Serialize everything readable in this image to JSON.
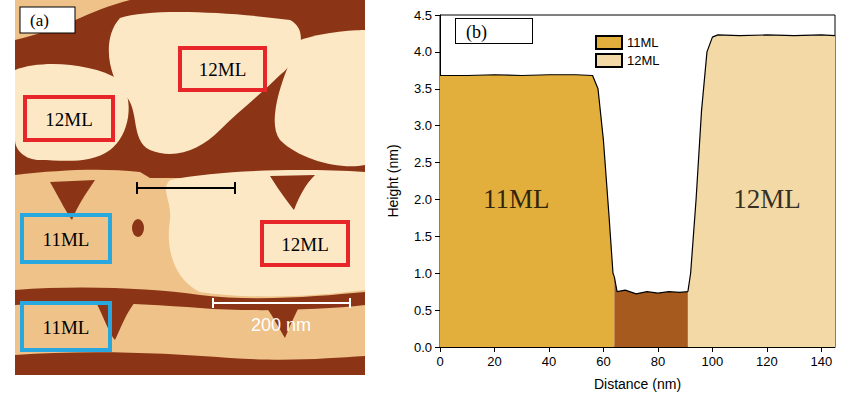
{
  "image_panel": {
    "panel_label": "(a)",
    "labels": [
      {
        "text": "12ML",
        "color": "#e8262a"
      },
      {
        "text": "12ML",
        "color": "#e8262a"
      },
      {
        "text": "11ML",
        "color": "#29a8e0"
      },
      {
        "text": "12ML",
        "color": "#e8262a"
      },
      {
        "text": "11ML",
        "color": "#29a8e0"
      }
    ],
    "scale_bar": "200 nm"
  },
  "chart_data": {
    "type": "area",
    "panel_label": "(b)",
    "x_label": "Distance (nm)",
    "y_label": "Height (nm)",
    "series": [
      {
        "name": "11ML",
        "color": "#e2ae3c",
        "x": [
          0,
          10,
          20,
          30,
          40,
          50,
          56,
          58,
          60,
          62,
          63.5,
          64
        ],
        "values": [
          3.68,
          3.68,
          3.69,
          3.68,
          3.69,
          3.69,
          3.68,
          3.5,
          2.8,
          1.8,
          1.0,
          0.95
        ]
      },
      {
        "color": "#a65a1e",
        "x": [
          64,
          65,
          68,
          72,
          76,
          80,
          84,
          88,
          91
        ],
        "values": [
          0.95,
          0.75,
          0.77,
          0.72,
          0.75,
          0.73,
          0.75,
          0.74,
          0.75
        ]
      },
      {
        "name": "12ML",
        "color": "#f3d9a6",
        "x": [
          91,
          92,
          94,
          96,
          98,
          100,
          102,
          110,
          120,
          130,
          140,
          145
        ],
        "values": [
          0.75,
          1.0,
          2.0,
          3.2,
          4.0,
          4.2,
          4.23,
          4.22,
          4.23,
          4.22,
          4.23,
          4.22
        ]
      }
    ],
    "annotations": [
      {
        "text": "11ML",
        "x": 28,
        "y": 2.0
      },
      {
        "text": "12ML",
        "x": 120,
        "y": 2.0
      }
    ],
    "xlim": [
      0,
      145
    ],
    "xticks": [
      0,
      20,
      40,
      60,
      80,
      100,
      120,
      140
    ],
    "ylim": [
      0,
      4.5
    ],
    "yticks": [
      {
        "value": 0,
        "label": "0.0"
      },
      {
        "value": 0.5,
        "label": "0.5"
      },
      {
        "value": 1,
        "label": "1.0"
      },
      {
        "value": 1.5,
        "label": "1.5"
      },
      {
        "value": 2,
        "label": "2.0"
      },
      {
        "value": 2.5,
        "label": "2.5"
      },
      {
        "value": 3,
        "label": "3.0"
      },
      {
        "value": 3.5,
        "label": "3.5"
      },
      {
        "value": 4,
        "label": "4.0"
      },
      {
        "value": 4.5,
        "label": "4.5"
      }
    ],
    "legend": "top",
    "grid": false
  }
}
